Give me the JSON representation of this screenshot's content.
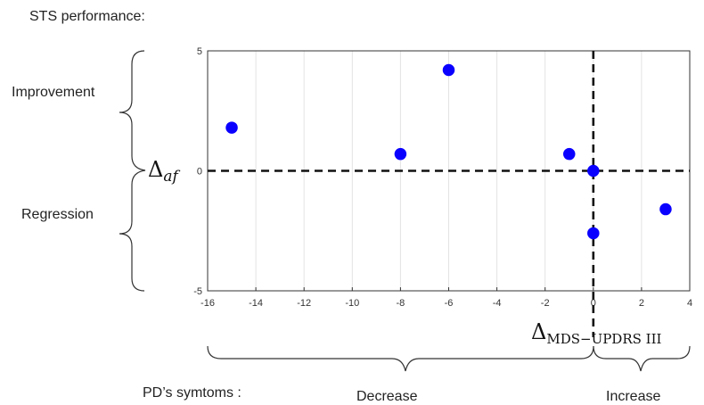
{
  "figure": {
    "title": "STS performance:",
    "improvement_label": "Improvement",
    "regression_label": "Regression",
    "ylabel_symbol": "Δ",
    "ylabel_sub": "af",
    "xlabel_symbol": "Δ",
    "xlabel_sub": "MDS−UPDRS III",
    "symptoms_label": "PD’s symtoms :",
    "decrease_label": "Decrease",
    "increase_label": "Increase"
  },
  "chart_data": {
    "type": "scatter",
    "xlim": [
      -16,
      4
    ],
    "ylim": [
      -5,
      5
    ],
    "x_ticks": [
      -16,
      -14,
      -12,
      -10,
      -8,
      -6,
      -4,
      -2,
      0,
      2,
      4
    ],
    "y_ticks": [
      -5,
      0,
      5
    ],
    "grid": "vertical",
    "reference_lines": {
      "x": 0,
      "y": 0
    },
    "marker_color": "#0a00ff",
    "points": [
      {
        "x": -15,
        "y": 1.8
      },
      {
        "x": -8,
        "y": 0.7
      },
      {
        "x": -6,
        "y": 4.2
      },
      {
        "x": -1,
        "y": 0.7
      },
      {
        "x": 0,
        "y": 0
      },
      {
        "x": 0,
        "y": -2.6
      },
      {
        "x": 3,
        "y": -1.6
      }
    ]
  }
}
